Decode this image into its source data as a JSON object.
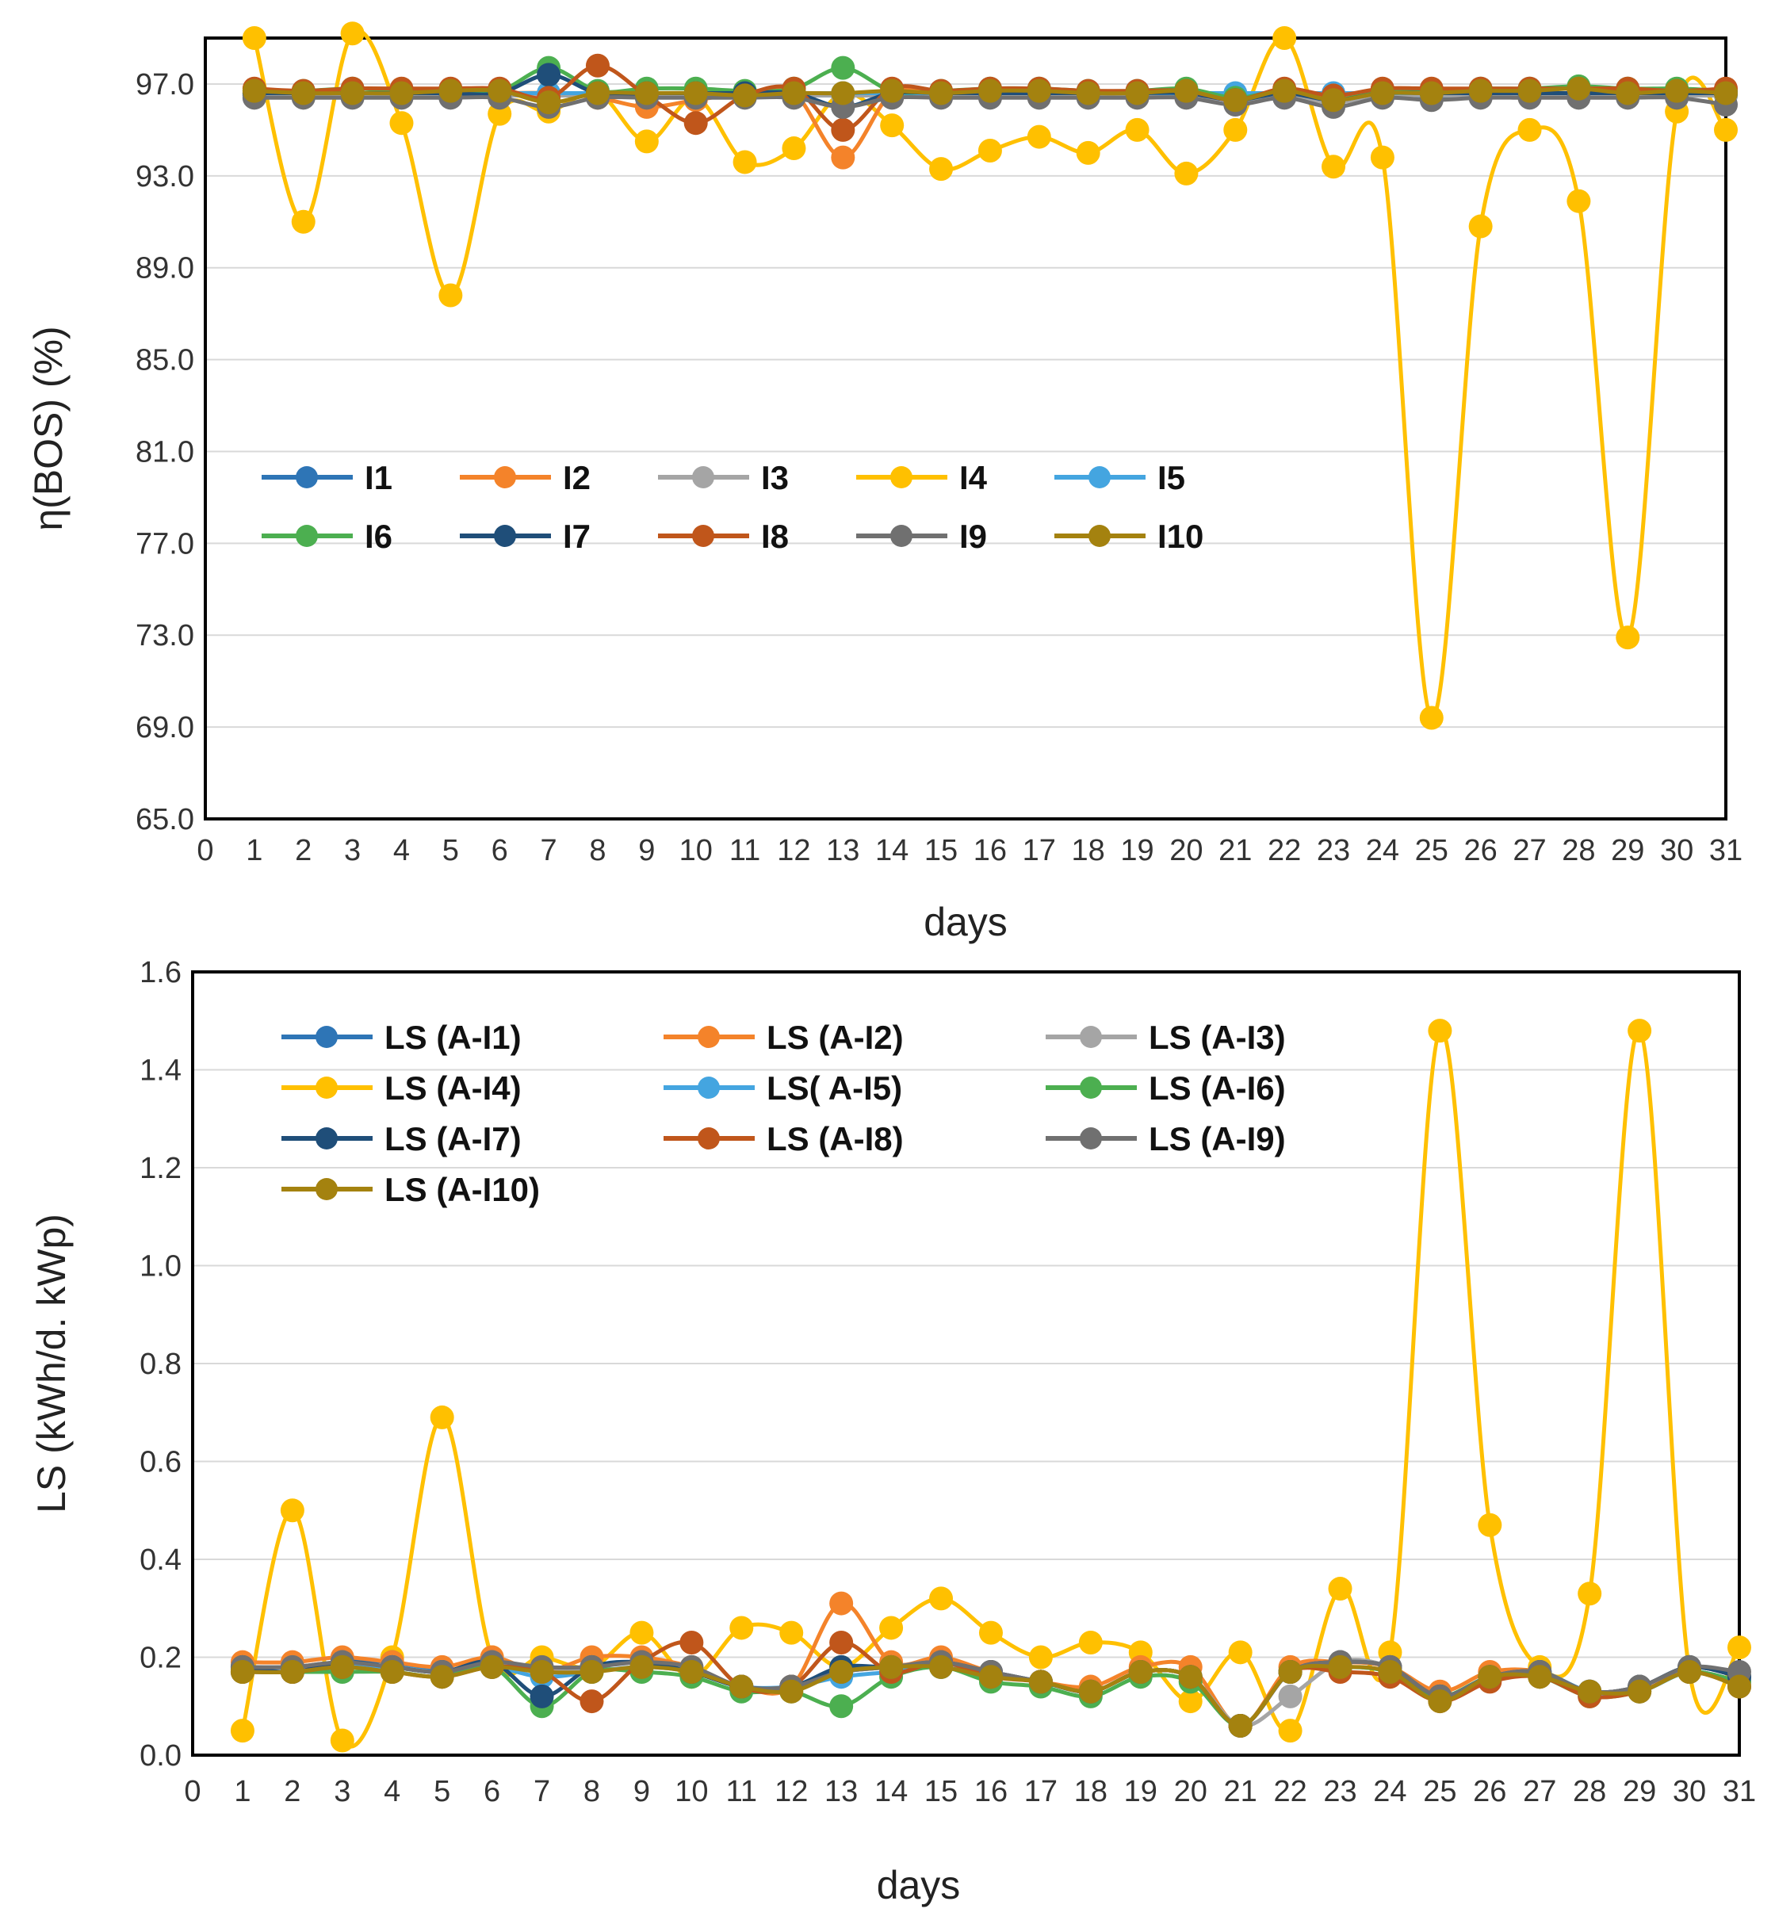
{
  "chart_data": [
    {
      "type": "line",
      "xlabel": "days",
      "ylabel": "η(BOS) (%)",
      "xlim": [
        0,
        31
      ],
      "ylim": [
        65,
        99
      ],
      "x_ticks": [
        0,
        1,
        2,
        3,
        4,
        5,
        6,
        7,
        8,
        9,
        10,
        11,
        12,
        13,
        14,
        15,
        16,
        17,
        18,
        19,
        20,
        21,
        22,
        23,
        24,
        25,
        26,
        27,
        28,
        29,
        30,
        31
      ],
      "y_ticks": [
        65,
        69,
        73,
        77,
        81,
        85,
        89,
        93,
        97
      ],
      "y_tick_labels": [
        "65.0",
        "69.0",
        "73.0",
        "77.0",
        "81.0",
        "85.0",
        "89.0",
        "93.0",
        "97.0"
      ],
      "grid": true,
      "legend_position": "middle-left",
      "legend_columns": 5,
      "x": [
        1,
        2,
        3,
        4,
        5,
        6,
        7,
        8,
        9,
        10,
        11,
        12,
        13,
        14,
        15,
        16,
        17,
        18,
        19,
        20,
        21,
        22,
        23,
        24,
        25,
        26,
        27,
        28,
        29,
        30,
        31
      ],
      "series": [
        {
          "name": "I1",
          "color": "#2E75B6",
          "values": [
            96.5,
            96.5,
            96.5,
            96.5,
            96.5,
            96.5,
            96.5,
            96.5,
            96.5,
            96.5,
            96.5,
            96.5,
            96.5,
            96.5,
            96.5,
            96.5,
            96.5,
            96.5,
            96.5,
            96.5,
            96.3,
            96.5,
            96.3,
            96.5,
            96.4,
            96.5,
            96.5,
            96.5,
            96.5,
            96.5,
            96.5
          ]
        },
        {
          "name": "I2",
          "color": "#F4832A",
          "values": [
            96.6,
            96.6,
            96.6,
            96.6,
            96.6,
            96.6,
            96.6,
            96.4,
            96.0,
            96.3,
            96.6,
            96.6,
            93.8,
            96.6,
            96.6,
            96.6,
            96.6,
            96.6,
            96.6,
            96.6,
            96.4,
            96.6,
            96.4,
            96.6,
            96.6,
            96.6,
            96.6,
            96.6,
            96.6,
            96.6,
            96.6
          ]
        },
        {
          "name": "I3",
          "color": "#A5A5A5",
          "values": [
            96.5,
            96.5,
            96.5,
            96.5,
            96.5,
            96.5,
            96.5,
            96.5,
            96.5,
            96.5,
            96.5,
            96.5,
            96.5,
            96.5,
            96.5,
            96.5,
            96.5,
            96.5,
            96.5,
            96.5,
            96.3,
            96.5,
            96.2,
            96.5,
            96.5,
            96.5,
            96.5,
            96.5,
            96.5,
            96.5,
            96.5
          ]
        },
        {
          "name": "I4",
          "color": "#FFC000",
          "values": [
            99.0,
            91.0,
            99.2,
            95.3,
            87.8,
            95.7,
            95.8,
            96.6,
            94.5,
            96.4,
            93.6,
            94.2,
            96.6,
            95.2,
            93.3,
            94.1,
            94.7,
            94.0,
            95.0,
            93.1,
            95.0,
            99.0,
            93.4,
            93.8,
            69.4,
            90.8,
            95.0,
            91.9,
            72.9,
            95.8,
            95.0
          ]
        },
        {
          "name": "I5",
          "color": "#44A5E0",
          "values": [
            96.6,
            96.6,
            96.6,
            96.6,
            96.6,
            96.6,
            96.6,
            96.6,
            96.6,
            96.6,
            96.6,
            96.6,
            96.6,
            96.6,
            96.6,
            96.6,
            96.6,
            96.6,
            96.6,
            96.6,
            96.6,
            96.6,
            96.6,
            96.6,
            96.6,
            96.6,
            96.6,
            96.6,
            96.6,
            96.6,
            96.6
          ]
        },
        {
          "name": "I6",
          "color": "#4CAF50",
          "values": [
            96.7,
            96.7,
            96.8,
            96.7,
            96.7,
            96.7,
            97.7,
            96.7,
            96.8,
            96.8,
            96.7,
            96.8,
            97.7,
            96.7,
            96.7,
            96.8,
            96.8,
            96.7,
            96.7,
            96.8,
            96.4,
            96.7,
            96.3,
            96.7,
            96.7,
            96.8,
            96.8,
            96.9,
            96.8,
            96.8,
            96.7
          ]
        },
        {
          "name": "I7",
          "color": "#1F4E79",
          "values": [
            96.6,
            96.6,
            96.6,
            96.6,
            96.6,
            96.6,
            97.4,
            96.6,
            96.6,
            96.6,
            96.6,
            96.6,
            96.0,
            96.6,
            96.6,
            96.6,
            96.6,
            96.6,
            96.6,
            96.6,
            96.3,
            96.6,
            96.3,
            96.6,
            96.6,
            96.6,
            96.6,
            96.6,
            96.6,
            96.6,
            96.6
          ]
        },
        {
          "name": "I8",
          "color": "#C0561B",
          "values": [
            96.8,
            96.7,
            96.8,
            96.8,
            96.8,
            96.8,
            96.4,
            97.8,
            96.5,
            95.3,
            96.5,
            96.8,
            95.0,
            96.8,
            96.7,
            96.8,
            96.8,
            96.7,
            96.7,
            96.7,
            96.3,
            96.8,
            96.5,
            96.8,
            96.8,
            96.8,
            96.8,
            96.8,
            96.8,
            96.7,
            96.8
          ]
        },
        {
          "name": "I9",
          "color": "#707070",
          "values": [
            96.4,
            96.4,
            96.4,
            96.4,
            96.4,
            96.4,
            96.0,
            96.4,
            96.4,
            96.4,
            96.4,
            96.4,
            96.0,
            96.4,
            96.4,
            96.4,
            96.4,
            96.4,
            96.4,
            96.4,
            96.1,
            96.4,
            96.0,
            96.4,
            96.3,
            96.4,
            96.4,
            96.4,
            96.4,
            96.4,
            96.1
          ]
        },
        {
          "name": "I10",
          "color": "#A4820F",
          "values": [
            96.7,
            96.6,
            96.6,
            96.6,
            96.7,
            96.7,
            96.2,
            96.6,
            96.6,
            96.6,
            96.5,
            96.6,
            96.6,
            96.7,
            96.6,
            96.7,
            96.7,
            96.6,
            96.6,
            96.7,
            96.3,
            96.7,
            96.3,
            96.6,
            96.6,
            96.7,
            96.7,
            96.8,
            96.6,
            96.7,
            96.6
          ]
        }
      ]
    },
    {
      "type": "line",
      "xlabel": "days",
      "ylabel": "LS (kWh/d. kWp)",
      "xlim": [
        0,
        31
      ],
      "ylim": [
        0,
        1.6
      ],
      "x_ticks": [
        0,
        1,
        2,
        3,
        4,
        5,
        6,
        7,
        8,
        9,
        10,
        11,
        12,
        13,
        14,
        15,
        16,
        17,
        18,
        19,
        20,
        21,
        22,
        23,
        24,
        25,
        26,
        27,
        28,
        29,
        30,
        31
      ],
      "y_ticks": [
        0,
        0.2,
        0.4,
        0.6,
        0.8,
        1.0,
        1.2,
        1.4,
        1.6
      ],
      "y_tick_labels": [
        "0.0",
        "0.2",
        "0.4",
        "0.6",
        "0.8",
        "1.0",
        "1.2",
        "1.4",
        "1.6"
      ],
      "grid": true,
      "legend_position": "top-left",
      "legend_columns": 3,
      "x": [
        1,
        2,
        3,
        4,
        5,
        6,
        7,
        8,
        9,
        10,
        11,
        12,
        13,
        14,
        15,
        16,
        17,
        18,
        19,
        20,
        21,
        22,
        23,
        24,
        25,
        26,
        27,
        28,
        29,
        30,
        31
      ],
      "series": [
        {
          "name": "LS (A-I1)",
          "color": "#2E75B6",
          "values": [
            0.18,
            0.18,
            0.19,
            0.19,
            0.17,
            0.19,
            0.17,
            0.18,
            0.19,
            0.17,
            0.14,
            0.14,
            0.17,
            0.18,
            0.19,
            0.17,
            0.15,
            0.13,
            0.17,
            0.16,
            0.06,
            0.17,
            0.19,
            0.18,
            0.12,
            0.16,
            0.17,
            0.13,
            0.14,
            0.18,
            0.16
          ]
        },
        {
          "name": "LS (A-I2)",
          "color": "#F4832A",
          "values": [
            0.19,
            0.19,
            0.2,
            0.19,
            0.18,
            0.2,
            0.17,
            0.2,
            0.2,
            0.18,
            0.14,
            0.14,
            0.31,
            0.19,
            0.2,
            0.17,
            0.15,
            0.14,
            0.18,
            0.18,
            0.06,
            0.18,
            0.19,
            0.18,
            0.13,
            0.17,
            0.17,
            0.13,
            0.14,
            0.18,
            0.16
          ]
        },
        {
          "name": "LS (A-I3)",
          "color": "#A5A5A5",
          "values": [
            0.18,
            0.18,
            0.19,
            0.18,
            0.17,
            0.19,
            0.17,
            0.18,
            0.19,
            0.17,
            0.14,
            0.14,
            0.17,
            0.18,
            0.19,
            0.17,
            0.15,
            0.13,
            0.17,
            0.16,
            0.06,
            0.12,
            0.19,
            0.18,
            0.12,
            0.16,
            0.17,
            0.13,
            0.14,
            0.18,
            0.16
          ]
        },
        {
          "name": "LS (A-I4)",
          "color": "#FFC000",
          "values": [
            0.05,
            0.5,
            0.03,
            0.2,
            0.69,
            0.2,
            0.2,
            0.18,
            0.25,
            0.16,
            0.26,
            0.25,
            0.18,
            0.26,
            0.32,
            0.25,
            0.2,
            0.23,
            0.21,
            0.11,
            0.21,
            0.05,
            0.34,
            0.21,
            1.48,
            0.47,
            0.18,
            0.33,
            1.48,
            0.17,
            0.22
          ]
        },
        {
          "name": "LS( A-I5)",
          "color": "#44A5E0",
          "values": [
            0.17,
            0.17,
            0.18,
            0.18,
            0.17,
            0.18,
            0.16,
            0.17,
            0.18,
            0.17,
            0.14,
            0.14,
            0.16,
            0.17,
            0.18,
            0.16,
            0.15,
            0.13,
            0.17,
            0.16,
            0.06,
            0.17,
            0.18,
            0.17,
            0.12,
            0.16,
            0.17,
            0.13,
            0.13,
            0.17,
            0.15
          ]
        },
        {
          "name": "LS (A-I6)",
          "color": "#4CAF50",
          "values": [
            0.17,
            0.17,
            0.17,
            0.17,
            0.16,
            0.18,
            0.1,
            0.17,
            0.17,
            0.16,
            0.13,
            0.13,
            0.1,
            0.16,
            0.18,
            0.15,
            0.14,
            0.12,
            0.16,
            0.15,
            0.06,
            0.17,
            0.18,
            0.17,
            0.12,
            0.16,
            0.16,
            0.12,
            0.13,
            0.17,
            0.15
          ]
        },
        {
          "name": "LS (A-I7)",
          "color": "#1F4E79",
          "values": [
            0.18,
            0.17,
            0.19,
            0.18,
            0.17,
            0.19,
            0.12,
            0.18,
            0.19,
            0.17,
            0.14,
            0.14,
            0.18,
            0.18,
            0.19,
            0.17,
            0.15,
            0.13,
            0.17,
            0.16,
            0.06,
            0.17,
            0.19,
            0.18,
            0.12,
            0.16,
            0.17,
            0.13,
            0.14,
            0.18,
            0.16
          ]
        },
        {
          "name": "LS (A-I8)",
          "color": "#C0561B",
          "values": [
            0.17,
            0.17,
            0.18,
            0.17,
            0.16,
            0.18,
            0.17,
            0.11,
            0.19,
            0.23,
            0.14,
            0.14,
            0.23,
            0.17,
            0.19,
            0.16,
            0.15,
            0.13,
            0.17,
            0.16,
            0.06,
            0.17,
            0.17,
            0.16,
            0.11,
            0.15,
            0.16,
            0.12,
            0.13,
            0.17,
            0.14
          ]
        },
        {
          "name": "LS (A-I9)",
          "color": "#707070",
          "values": [
            0.18,
            0.18,
            0.19,
            0.18,
            0.17,
            0.19,
            0.18,
            0.18,
            0.19,
            0.18,
            0.14,
            0.14,
            0.17,
            0.18,
            0.19,
            0.17,
            0.15,
            0.13,
            0.17,
            0.16,
            0.06,
            0.17,
            0.19,
            0.18,
            0.12,
            0.16,
            0.17,
            0.13,
            0.14,
            0.18,
            0.17
          ]
        },
        {
          "name": "LS (A-I10)",
          "color": "#A4820F",
          "values": [
            0.17,
            0.17,
            0.18,
            0.17,
            0.16,
            0.18,
            0.17,
            0.17,
            0.18,
            0.17,
            0.14,
            0.13,
            0.17,
            0.18,
            0.18,
            0.16,
            0.15,
            0.13,
            0.17,
            0.16,
            0.06,
            0.17,
            0.18,
            0.17,
            0.11,
            0.16,
            0.16,
            0.13,
            0.13,
            0.17,
            0.14
          ]
        }
      ]
    }
  ]
}
